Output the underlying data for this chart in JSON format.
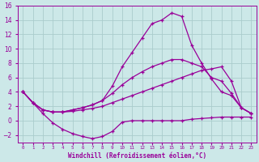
{
  "xlabel": "Windchill (Refroidissement éolien,°C)",
  "bg_color": "#cce8e8",
  "grid_color": "#aacccc",
  "line_color": "#990099",
  "x_ticks": [
    0,
    1,
    2,
    3,
    4,
    5,
    6,
    7,
    8,
    9,
    10,
    11,
    12,
    13,
    14,
    15,
    16,
    17,
    18,
    19,
    20,
    21,
    22,
    23
  ],
  "ylim": [
    -3,
    16
  ],
  "xlim": [
    -0.5,
    23.5
  ],
  "line1_x": [
    0,
    1,
    2,
    3,
    4,
    5,
    6,
    7,
    8,
    9,
    10,
    11,
    12,
    13,
    14,
    15,
    16,
    17,
    18,
    19,
    20,
    21,
    22,
    23
  ],
  "line1_y": [
    4.0,
    2.5,
    1.0,
    -0.3,
    -1.2,
    -1.8,
    -2.2,
    -2.5,
    -2.2,
    -1.5,
    -0.2,
    0.0,
    0.0,
    0.0,
    0.0,
    0.0,
    0.0,
    0.2,
    0.3,
    0.4,
    0.5,
    0.5,
    0.5,
    0.5
  ],
  "line2_x": [
    0,
    1,
    2,
    3,
    4,
    5,
    6,
    7,
    8,
    9,
    10,
    11,
    12,
    13,
    14,
    15,
    16,
    17,
    18,
    19,
    20,
    21,
    22,
    23
  ],
  "line2_y": [
    4.0,
    2.5,
    1.5,
    1.2,
    1.2,
    1.3,
    1.5,
    1.7,
    2.0,
    2.5,
    3.0,
    3.5,
    4.0,
    4.5,
    5.0,
    5.5,
    6.0,
    6.5,
    7.0,
    7.2,
    7.5,
    5.5,
    1.8,
    1.0
  ],
  "line3_x": [
    0,
    1,
    2,
    3,
    4,
    5,
    6,
    7,
    8,
    9,
    10,
    11,
    12,
    13,
    14,
    15,
    16,
    17,
    18,
    19,
    20,
    21,
    22,
    23
  ],
  "line3_y": [
    4.0,
    2.5,
    1.5,
    1.2,
    1.2,
    1.5,
    1.8,
    2.2,
    2.8,
    4.8,
    7.5,
    9.5,
    11.5,
    13.5,
    14.0,
    15.0,
    14.5,
    10.5,
    8.0,
    5.8,
    4.0,
    3.5,
    1.8,
    1.0
  ],
  "line4_x": [
    0,
    1,
    2,
    3,
    4,
    5,
    6,
    7,
    8,
    9,
    10,
    11,
    12,
    13,
    14,
    15,
    16,
    17,
    18,
    19,
    20,
    21,
    22,
    23
  ],
  "line4_y": [
    4.0,
    2.5,
    1.5,
    1.2,
    1.2,
    1.5,
    1.8,
    2.2,
    2.8,
    3.8,
    5.0,
    6.0,
    6.8,
    7.5,
    8.0,
    8.5,
    8.5,
    8.0,
    7.5,
    6.0,
    5.5,
    3.8,
    1.8,
    1.0
  ]
}
